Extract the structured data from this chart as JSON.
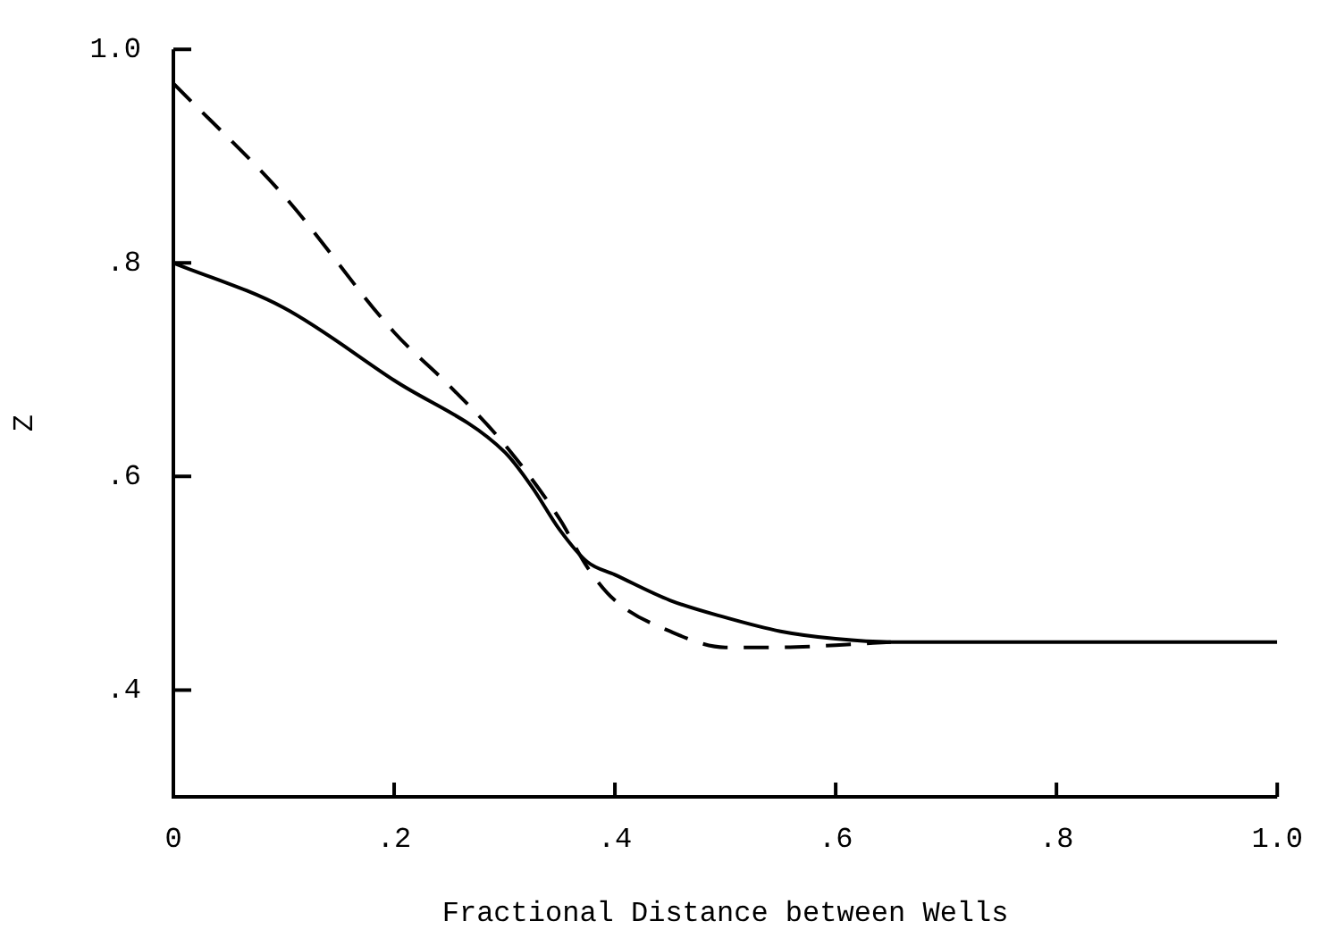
{
  "chart_data": {
    "type": "line",
    "xlabel": "Fractional Distance between Wells",
    "ylabel": "Z",
    "xlim": [
      0,
      1.0
    ],
    "ylim": [
      0.3,
      1.0
    ],
    "xticks": [
      {
        "value": 0,
        "label": "0"
      },
      {
        "value": 0.2,
        "label": ".2"
      },
      {
        "value": 0.4,
        "label": ".4"
      },
      {
        "value": 0.6,
        "label": ".6"
      },
      {
        "value": 0.8,
        "label": ".8"
      },
      {
        "value": 1.0,
        "label": "1.0"
      }
    ],
    "yticks": [
      {
        "value": 0.4,
        "label": ".4"
      },
      {
        "value": 0.6,
        "label": ".6"
      },
      {
        "value": 0.8,
        "label": ".8"
      },
      {
        "value": 1.0,
        "label": "1.0"
      }
    ],
    "grid": false,
    "legend": false,
    "marker": "none",
    "series": [
      {
        "color": "#000000",
        "line_style": "solid",
        "x": [
          0,
          0.1,
          0.2,
          0.3,
          0.325,
          0.35,
          0.375,
          0.4,
          0.45,
          0.5,
          0.55,
          0.6,
          0.65,
          0.7,
          0.8,
          0.9,
          1.0
        ],
        "values": [
          0.8,
          0.758,
          0.69,
          0.623,
          0.59,
          0.55,
          0.52,
          0.508,
          0.484,
          0.468,
          0.455,
          0.448,
          0.445,
          0.445,
          0.445,
          0.445,
          0.445
        ]
      },
      {
        "color": "#000000",
        "line_style": "dashed",
        "x": [
          0,
          0.1,
          0.2,
          0.25,
          0.3,
          0.35,
          0.375,
          0.4,
          0.45,
          0.5,
          0.55,
          0.6,
          0.65
        ],
        "values": [
          0.968,
          0.863,
          0.735,
          0.685,
          0.63,
          0.56,
          0.515,
          0.484,
          0.455,
          0.44,
          0.44,
          0.442,
          0.445
        ]
      }
    ]
  }
}
